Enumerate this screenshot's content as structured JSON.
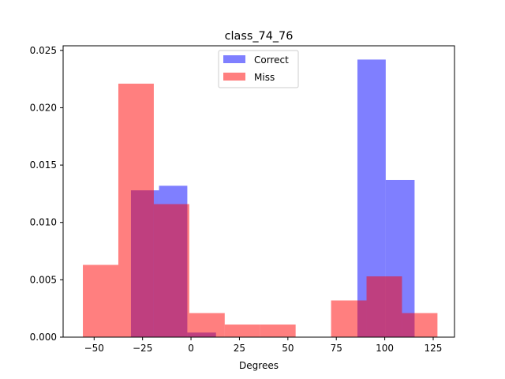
{
  "chart_data": {
    "type": "histogram",
    "title": "class_74_76",
    "xlabel": "Degrees",
    "ylabel": "",
    "xlim": [
      -66,
      136
    ],
    "ylim": [
      0,
      0.0254
    ],
    "xticks": [
      -50,
      -25,
      0,
      25,
      50,
      75,
      100,
      125
    ],
    "xtick_labels": [
      "−50",
      "−25",
      "0",
      "25",
      "50",
      "75",
      "100",
      "125"
    ],
    "yticks": [
      0.0,
      0.005,
      0.01,
      0.015,
      0.02,
      0.025
    ],
    "ytick_labels": [
      "0.000",
      "0.005",
      "0.010",
      "0.015",
      "0.020",
      "0.025"
    ],
    "grid": false,
    "legend_position": "top-center",
    "series": [
      {
        "name": "Correct",
        "color": "#0000ff",
        "alpha": 0.5,
        "bins": [
          {
            "x0": -31.0,
            "x1": -16.5,
            "value": 0.0128
          },
          {
            "x0": -16.5,
            "x1": -1.9,
            "value": 0.0132
          },
          {
            "x0": -1.9,
            "x1": 12.9,
            "value": 0.0004
          },
          {
            "x0": 12.9,
            "x1": 27.5,
            "value": 0.0
          },
          {
            "x0": 27.5,
            "x1": 42.1,
            "value": 0.0
          },
          {
            "x0": 42.1,
            "x1": 56.7,
            "value": 0.0
          },
          {
            "x0": 56.7,
            "x1": 71.3,
            "value": 0.0
          },
          {
            "x0": 71.3,
            "x1": 85.9,
            "value": 0.0
          },
          {
            "x0": 85.9,
            "x1": 100.5,
            "value": 0.0242
          },
          {
            "x0": 100.5,
            "x1": 115.4,
            "value": 0.0137
          }
        ]
      },
      {
        "name": "Miss",
        "color": "#ff0000",
        "alpha": 0.5,
        "bins": [
          {
            "x0": -55.8,
            "x1": -37.5,
            "value": 0.0063
          },
          {
            "x0": -37.5,
            "x1": -19.2,
            "value": 0.0221
          },
          {
            "x0": -19.2,
            "x1": -0.9,
            "value": 0.0116
          },
          {
            "x0": -0.9,
            "x1": 17.4,
            "value": 0.0021
          },
          {
            "x0": 17.4,
            "x1": 35.7,
            "value": 0.0011
          },
          {
            "x0": 35.7,
            "x1": 54.0,
            "value": 0.0011
          },
          {
            "x0": 54.0,
            "x1": 72.3,
            "value": 0.0
          },
          {
            "x0": 72.3,
            "x1": 90.6,
            "value": 0.0032
          },
          {
            "x0": 90.6,
            "x1": 108.9,
            "value": 0.0053
          },
          {
            "x0": 108.9,
            "x1": 127.2,
            "value": 0.0021
          }
        ]
      }
    ]
  }
}
